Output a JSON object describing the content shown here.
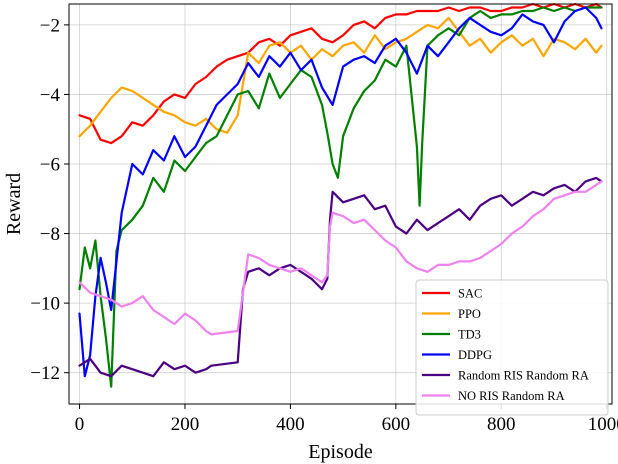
{
  "chart_data": {
    "type": "line",
    "title": "",
    "xlabel": "Episode",
    "ylabel": "Reward",
    "xlim": [
      -20,
      1010
    ],
    "ylim": [
      -12.9,
      -1.4
    ],
    "x_ticks": [
      0,
      200,
      400,
      600,
      800,
      1000
    ],
    "x_tick_labels": [
      "0",
      "200",
      "400",
      "600",
      "800",
      "1000"
    ],
    "y_ticks": [
      -12,
      -10,
      -8,
      -6,
      -4,
      -2
    ],
    "y_tick_labels": [
      "−12",
      "−10",
      "−8",
      "−6",
      "−4",
      "−2"
    ],
    "grid": true,
    "legend_position": "lower-right",
    "series": [
      {
        "name": "SAC",
        "color": "#ff0000",
        "x": [
          0,
          20,
          40,
          60,
          80,
          100,
          120,
          140,
          160,
          180,
          200,
          220,
          240,
          260,
          280,
          300,
          320,
          340,
          360,
          380,
          400,
          420,
          440,
          460,
          480,
          500,
          520,
          540,
          560,
          580,
          600,
          620,
          640,
          660,
          680,
          700,
          720,
          740,
          760,
          780,
          800,
          820,
          840,
          860,
          880,
          900,
          920,
          940,
          960,
          980,
          990
        ],
        "values": [
          -4.6,
          -4.7,
          -5.3,
          -5.4,
          -5.2,
          -4.8,
          -4.9,
          -4.6,
          -4.2,
          -4.0,
          -4.1,
          -3.7,
          -3.5,
          -3.2,
          -3.0,
          -2.9,
          -2.8,
          -2.5,
          -2.4,
          -2.6,
          -2.3,
          -2.2,
          -2.1,
          -2.4,
          -2.5,
          -2.3,
          -2.0,
          -1.9,
          -2.1,
          -1.8,
          -1.7,
          -1.7,
          -1.6,
          -1.6,
          -1.6,
          -1.5,
          -1.6,
          -1.5,
          -1.5,
          -1.6,
          -1.6,
          -1.5,
          -1.5,
          -1.4,
          -1.5,
          -1.4,
          -1.5,
          -1.4,
          -1.5,
          -1.4,
          -1.5
        ]
      },
      {
        "name": "PPO",
        "color": "#ffa500",
        "x": [
          0,
          20,
          40,
          60,
          80,
          100,
          120,
          140,
          160,
          180,
          200,
          220,
          240,
          260,
          280,
          300,
          320,
          340,
          360,
          380,
          400,
          420,
          440,
          460,
          480,
          500,
          520,
          540,
          560,
          580,
          600,
          620,
          640,
          660,
          680,
          700,
          720,
          740,
          760,
          780,
          800,
          820,
          840,
          860,
          880,
          900,
          920,
          940,
          960,
          980,
          990
        ],
        "values": [
          -5.2,
          -4.9,
          -4.5,
          -4.1,
          -3.8,
          -3.9,
          -4.1,
          -4.3,
          -4.5,
          -4.6,
          -4.8,
          -4.9,
          -4.7,
          -5.0,
          -5.1,
          -4.6,
          -2.8,
          -3.1,
          -2.6,
          -2.5,
          -2.8,
          -2.6,
          -3.0,
          -2.7,
          -2.9,
          -2.6,
          -2.5,
          -2.8,
          -2.3,
          -2.7,
          -2.5,
          -2.4,
          -2.2,
          -2.0,
          -2.1,
          -1.8,
          -2.2,
          -2.6,
          -2.4,
          -2.8,
          -2.5,
          -2.3,
          -2.6,
          -2.4,
          -2.9,
          -2.4,
          -2.5,
          -2.7,
          -2.4,
          -2.8,
          -2.6
        ]
      },
      {
        "name": "TD3",
        "color": "#008000",
        "x": [
          0,
          10,
          20,
          30,
          40,
          50,
          60,
          70,
          80,
          100,
          120,
          140,
          160,
          180,
          200,
          220,
          240,
          260,
          280,
          300,
          320,
          340,
          360,
          380,
          400,
          420,
          440,
          460,
          470,
          480,
          490,
          500,
          520,
          540,
          560,
          580,
          600,
          620,
          640,
          645,
          650,
          660,
          680,
          700,
          720,
          740,
          760,
          780,
          800,
          820,
          840,
          860,
          880,
          900,
          920,
          940,
          960,
          980,
          990
        ],
        "values": [
          -9.6,
          -8.4,
          -9.0,
          -8.2,
          -9.8,
          -11.0,
          -12.4,
          -8.5,
          -7.9,
          -7.6,
          -7.2,
          -6.4,
          -6.8,
          -5.9,
          -6.2,
          -5.8,
          -5.4,
          -5.2,
          -4.6,
          -4.0,
          -3.9,
          -4.4,
          -3.4,
          -4.1,
          -3.7,
          -3.3,
          -3.5,
          -4.3,
          -5.1,
          -6.0,
          -6.4,
          -5.2,
          -4.4,
          -3.9,
          -3.6,
          -3.0,
          -3.2,
          -2.6,
          -5.5,
          -7.2,
          -5.4,
          -2.6,
          -2.3,
          -2.1,
          -2.3,
          -1.8,
          -1.6,
          -1.8,
          -1.7,
          -1.7,
          -1.6,
          -1.6,
          -1.5,
          -1.6,
          -1.5,
          -1.6,
          -1.5,
          -1.5,
          -1.5
        ]
      },
      {
        "name": "DDPG",
        "color": "#0000ff",
        "x": [
          0,
          10,
          20,
          30,
          40,
          50,
          60,
          80,
          100,
          120,
          140,
          160,
          180,
          200,
          220,
          240,
          260,
          280,
          300,
          320,
          340,
          360,
          380,
          400,
          420,
          440,
          460,
          480,
          500,
          520,
          540,
          560,
          580,
          600,
          620,
          640,
          660,
          680,
          700,
          720,
          740,
          760,
          780,
          800,
          820,
          840,
          860,
          880,
          900,
          920,
          940,
          960,
          980,
          990
        ],
        "values": [
          -10.3,
          -12.1,
          -11.5,
          -9.8,
          -8.7,
          -9.4,
          -10.2,
          -7.4,
          -6.0,
          -6.3,
          -5.6,
          -5.9,
          -5.2,
          -5.8,
          -5.5,
          -4.9,
          -4.3,
          -4.0,
          -3.7,
          -3.1,
          -3.5,
          -2.9,
          -3.2,
          -2.8,
          -3.3,
          -3.0,
          -3.8,
          -4.3,
          -3.2,
          -3.0,
          -2.9,
          -3.1,
          -2.6,
          -2.4,
          -2.8,
          -3.4,
          -2.6,
          -2.9,
          -2.5,
          -2.1,
          -1.8,
          -2.0,
          -2.2,
          -2.3,
          -2.1,
          -1.7,
          -1.9,
          -2.0,
          -2.5,
          -1.9,
          -1.6,
          -1.5,
          -1.8,
          -2.1
        ]
      },
      {
        "name": "Random RIS Random RA",
        "color": "#4b0082",
        "x": [
          0,
          20,
          40,
          60,
          80,
          100,
          120,
          140,
          160,
          180,
          200,
          220,
          240,
          250,
          300,
          310,
          320,
          340,
          360,
          380,
          400,
          420,
          440,
          460,
          470,
          475,
          480,
          500,
          520,
          540,
          560,
          580,
          600,
          620,
          640,
          660,
          680,
          700,
          720,
          740,
          760,
          780,
          800,
          820,
          840,
          860,
          880,
          900,
          920,
          940,
          960,
          980,
          990
        ],
        "values": [
          -11.8,
          -11.6,
          -12.0,
          -12.1,
          -11.8,
          -11.9,
          -12.0,
          -12.1,
          -11.7,
          -11.9,
          -11.8,
          -12.0,
          -11.9,
          -11.8,
          -11.7,
          -9.6,
          -9.1,
          -9.0,
          -9.2,
          -9.0,
          -8.9,
          -9.1,
          -9.3,
          -9.6,
          -9.3,
          -7.6,
          -6.8,
          -7.1,
          -7.0,
          -6.9,
          -7.3,
          -7.2,
          -7.8,
          -8.0,
          -7.6,
          -7.9,
          -7.7,
          -7.5,
          -7.3,
          -7.6,
          -7.2,
          -7.0,
          -6.9,
          -7.2,
          -7.0,
          -6.8,
          -6.9,
          -6.7,
          -6.6,
          -6.8,
          -6.5,
          -6.4,
          -6.5
        ]
      },
      {
        "name": "NO RIS Random RA",
        "color": "#ee82ee",
        "x": [
          0,
          20,
          40,
          60,
          80,
          100,
          120,
          140,
          160,
          180,
          200,
          220,
          240,
          250,
          300,
          320,
          340,
          360,
          380,
          400,
          420,
          440,
          460,
          470,
          475,
          480,
          500,
          520,
          540,
          560,
          580,
          600,
          620,
          640,
          660,
          680,
          700,
          720,
          740,
          760,
          780,
          800,
          820,
          840,
          860,
          880,
          900,
          920,
          940,
          960,
          980,
          990
        ],
        "values": [
          -9.4,
          -9.7,
          -9.8,
          -9.9,
          -10.1,
          -10.0,
          -9.8,
          -10.2,
          -10.4,
          -10.6,
          -10.3,
          -10.5,
          -10.8,
          -10.9,
          -10.8,
          -8.6,
          -8.7,
          -8.9,
          -9.0,
          -9.1,
          -9.0,
          -9.2,
          -9.4,
          -9.2,
          -7.8,
          -7.4,
          -7.5,
          -7.7,
          -7.6,
          -7.9,
          -8.2,
          -8.4,
          -8.8,
          -9.0,
          -9.1,
          -8.9,
          -8.9,
          -8.8,
          -8.8,
          -8.7,
          -8.5,
          -8.3,
          -8.0,
          -7.8,
          -7.5,
          -7.3,
          -7.0,
          -6.9,
          -6.8,
          -6.8,
          -6.6,
          -6.5
        ]
      }
    ]
  }
}
